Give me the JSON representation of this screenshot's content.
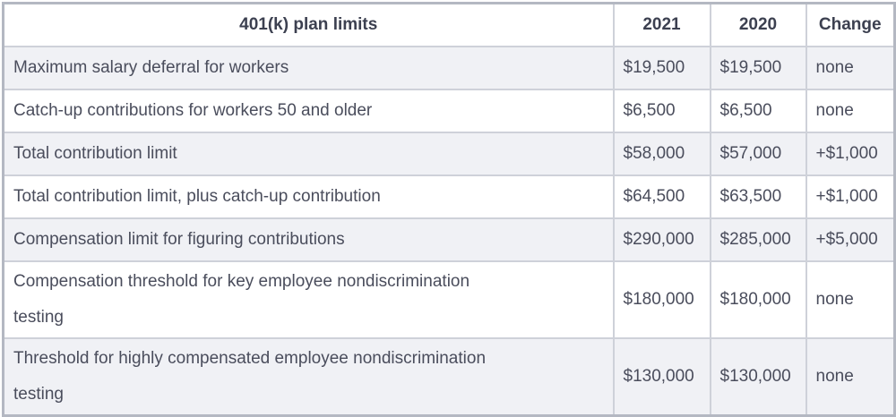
{
  "chart_data": {
    "type": "table",
    "title": "401(k) plan limits",
    "columns": [
      "401(k) plan limits",
      "2021",
      "2020",
      "Change"
    ],
    "rows": [
      [
        "Maximum salary deferral for workers",
        "$19,500",
        "$19,500",
        "none"
      ],
      [
        "Catch-up contributions for workers 50 and older",
        "$6,500",
        "$6,500",
        "none"
      ],
      [
        "Total contribution limit",
        "$58,000",
        "$57,000",
        "+$1,000"
      ],
      [
        "Total contribution limit, plus catch-up contribution",
        "$64,500",
        "$63,500",
        "+$1,000"
      ],
      [
        "Compensation limit for figuring contributions",
        "$290,000",
        "$285,000",
        "+$5,000"
      ],
      [
        "Compensation threshold for key employee nondiscrimination testing",
        "$180,000",
        "$180,000",
        "none"
      ],
      [
        "Threshold for highly compensated employee nondiscrimination testing",
        "$130,000",
        "$130,000",
        "none"
      ]
    ],
    "layout": {
      "striped": true,
      "stripe_color": "#f0f1f5",
      "row_color": "#ffffff",
      "inner_border_color": "#ced1d9",
      "outer_border_color": "#b4b8c2",
      "text_color": "#4a4d5c",
      "header_text_color": "#3c4050",
      "background": "#ffffff",
      "header_alignment": "center",
      "cell_alignment": "left"
    }
  }
}
